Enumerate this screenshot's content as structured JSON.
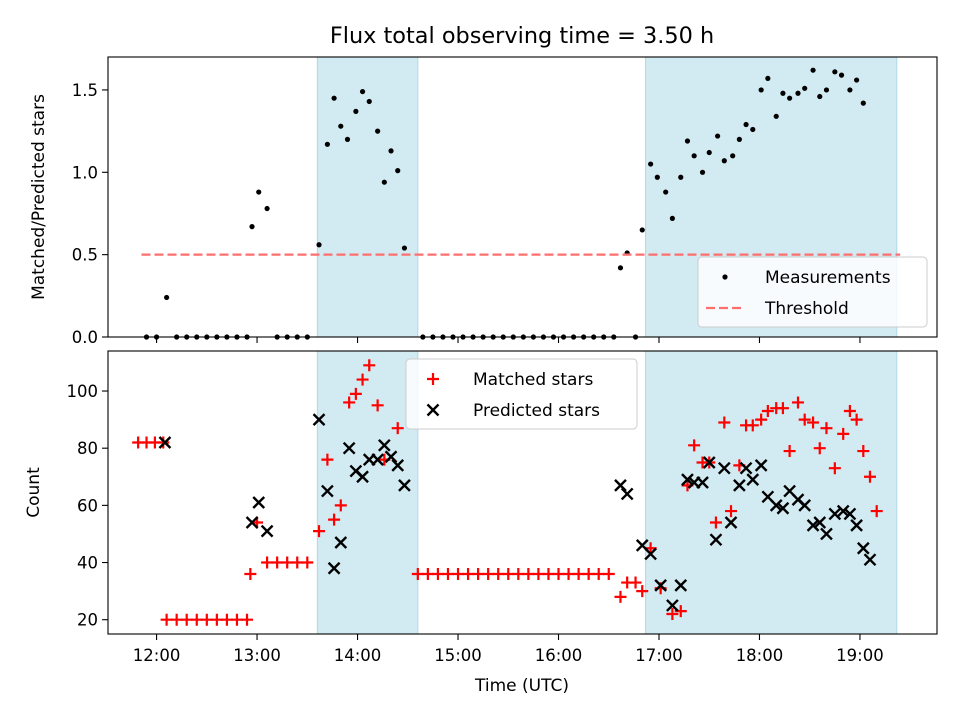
{
  "figure": {
    "title": "Flux total observing time = 3.50 h",
    "xlabel": "Time (UTC)",
    "x_ticks": [
      "12:00",
      "13:00",
      "14:00",
      "15:00",
      "16:00",
      "17:00",
      "18:00",
      "19:00"
    ],
    "shaded_intervals": [
      [
        "13:36",
        "14:36"
      ],
      [
        "16:52",
        "19:22"
      ]
    ],
    "shade_color": "#add8e6"
  },
  "chart_data": [
    {
      "type": "scatter",
      "ylabel": "Matched/Predicted stars",
      "xlim": [
        "11:31",
        "19:46"
      ],
      "ylim": [
        0,
        1.7
      ],
      "y_ticks": [
        "0.0",
        "0.5",
        "1.0",
        "1.5"
      ],
      "legend_position": "lower right",
      "series": [
        {
          "name": "Measurements",
          "marker": "dot",
          "color": "#000000",
          "points": [
            [
              "11:54",
              0
            ],
            [
              "12:00",
              0
            ],
            [
              "12:06",
              0.24
            ],
            [
              "12:12",
              0
            ],
            [
              "12:18",
              0
            ],
            [
              "12:24",
              0
            ],
            [
              "12:30",
              0
            ],
            [
              "12:36",
              0
            ],
            [
              "12:42",
              0
            ],
            [
              "12:48",
              0
            ],
            [
              "12:54",
              0
            ],
            [
              "12:57",
              0.67
            ],
            [
              "13:01",
              0.88
            ],
            [
              "13:06",
              0.78
            ],
            [
              "13:12",
              0
            ],
            [
              "13:18",
              0
            ],
            [
              "13:24",
              0
            ],
            [
              "13:30",
              0
            ],
            [
              "13:37",
              0.56
            ],
            [
              "13:42",
              1.17
            ],
            [
              "13:46",
              1.45
            ],
            [
              "13:50",
              1.28
            ],
            [
              "13:54",
              1.2
            ],
            [
              "13:59",
              1.37
            ],
            [
              "14:03",
              1.49
            ],
            [
              "14:07",
              1.43
            ],
            [
              "14:12",
              1.25
            ],
            [
              "14:16",
              0.94
            ],
            [
              "14:20",
              1.13
            ],
            [
              "14:24",
              1.01
            ],
            [
              "14:28",
              0.54
            ],
            [
              "14:39",
              0
            ],
            [
              "14:45",
              0
            ],
            [
              "14:51",
              0
            ],
            [
              "14:57",
              0
            ],
            [
              "15:03",
              0
            ],
            [
              "15:09",
              0
            ],
            [
              "15:15",
              0
            ],
            [
              "15:21",
              0
            ],
            [
              "15:27",
              0
            ],
            [
              "15:33",
              0
            ],
            [
              "15:39",
              0
            ],
            [
              "15:45",
              0
            ],
            [
              "15:51",
              0
            ],
            [
              "15:57",
              0
            ],
            [
              "16:03",
              0
            ],
            [
              "16:09",
              0
            ],
            [
              "16:15",
              0
            ],
            [
              "16:21",
              0
            ],
            [
              "16:27",
              0
            ],
            [
              "16:33",
              0
            ],
            [
              "16:37",
              0.42
            ],
            [
              "16:41",
              0.51
            ],
            [
              "16:46",
              0
            ],
            [
              "16:50",
              0.65
            ],
            [
              "16:55",
              1.05
            ],
            [
              "16:59",
              0.97
            ],
            [
              "17:04",
              0.88
            ],
            [
              "17:08",
              0.72
            ],
            [
              "17:13",
              0.97
            ],
            [
              "17:17",
              1.19
            ],
            [
              "17:21",
              1.1
            ],
            [
              "17:26",
              1.0
            ],
            [
              "17:30",
              1.12
            ],
            [
              "17:35",
              1.22
            ],
            [
              "17:39",
              1.07
            ],
            [
              "17:44",
              1.1
            ],
            [
              "17:48",
              1.2
            ],
            [
              "17:52",
              1.29
            ],
            [
              "17:56",
              1.26
            ],
            [
              "18:01",
              1.5
            ],
            [
              "18:05",
              1.57
            ],
            [
              "18:10",
              1.34
            ],
            [
              "18:14",
              1.48
            ],
            [
              "18:18",
              1.45
            ],
            [
              "18:23",
              1.48
            ],
            [
              "18:27",
              1.51
            ],
            [
              "18:32",
              1.62
            ],
            [
              "18:36",
              1.46
            ],
            [
              "18:40",
              1.5
            ],
            [
              "18:45",
              1.61
            ],
            [
              "18:49",
              1.59
            ],
            [
              "18:54",
              1.5
            ],
            [
              "18:58",
              1.56
            ],
            [
              "19:02",
              1.42
            ]
          ]
        },
        {
          "name": "Threshold",
          "style": "dashed-line",
          "color": "#ff6e6e",
          "points": [
            [
              "11:51",
              0.5
            ],
            [
              "19:24",
              0.5
            ]
          ]
        }
      ]
    },
    {
      "type": "scatter",
      "ylabel": "Count",
      "xlim": [
        "11:31",
        "19:46"
      ],
      "ylim": [
        15,
        114
      ],
      "y_ticks": [
        "20",
        "40",
        "60",
        "80",
        "100"
      ],
      "legend_position": "upper center",
      "series": [
        {
          "name": "Matched stars",
          "marker": "plus",
          "color": "#ff0000",
          "points": [
            [
              "11:49",
              82
            ],
            [
              "11:54",
              82
            ],
            [
              "11:59",
              82
            ],
            [
              "12:04",
              82
            ],
            [
              "12:06",
              20
            ],
            [
              "12:12",
              20
            ],
            [
              "12:18",
              20
            ],
            [
              "12:24",
              20
            ],
            [
              "12:30",
              20
            ],
            [
              "12:36",
              20
            ],
            [
              "12:42",
              20
            ],
            [
              "12:48",
              20
            ],
            [
              "12:54",
              20
            ],
            [
              "12:56",
              36
            ],
            [
              "13:00",
              54
            ],
            [
              "13:06",
              40
            ],
            [
              "13:12",
              40
            ],
            [
              "13:18",
              40
            ],
            [
              "13:24",
              40
            ],
            [
              "13:30",
              40
            ],
            [
              "13:37",
              51
            ],
            [
              "13:42",
              76
            ],
            [
              "13:46",
              55
            ],
            [
              "13:50",
              60
            ],
            [
              "13:55",
              96
            ],
            [
              "13:59",
              99
            ],
            [
              "14:03",
              104
            ],
            [
              "14:07",
              109
            ],
            [
              "14:12",
              95
            ],
            [
              "14:16",
              76
            ],
            [
              "14:24",
              87
            ],
            [
              "14:36",
              36
            ],
            [
              "14:42",
              36
            ],
            [
              "14:48",
              36
            ],
            [
              "14:54",
              36
            ],
            [
              "15:00",
              36
            ],
            [
              "15:06",
              36
            ],
            [
              "15:12",
              36
            ],
            [
              "15:18",
              36
            ],
            [
              "15:24",
              36
            ],
            [
              "15:30",
              36
            ],
            [
              "15:36",
              36
            ],
            [
              "15:42",
              36
            ],
            [
              "15:48",
              36
            ],
            [
              "15:54",
              36
            ],
            [
              "16:00",
              36
            ],
            [
              "16:06",
              36
            ],
            [
              "16:12",
              36
            ],
            [
              "16:18",
              36
            ],
            [
              "16:24",
              36
            ],
            [
              "16:30",
              36
            ],
            [
              "16:37",
              28
            ],
            [
              "16:41",
              33
            ],
            [
              "16:46",
              33
            ],
            [
              "16:50",
              30
            ],
            [
              "16:55",
              45
            ],
            [
              "17:01",
              31
            ],
            [
              "17:08",
              22
            ],
            [
              "17:13",
              23
            ],
            [
              "17:17",
              67
            ],
            [
              "17:21",
              81
            ],
            [
              "17:26",
              75
            ],
            [
              "17:30",
              75
            ],
            [
              "17:34",
              54
            ],
            [
              "17:39",
              89
            ],
            [
              "17:43",
              58
            ],
            [
              "17:48",
              74
            ],
            [
              "17:52",
              88
            ],
            [
              "17:56",
              88
            ],
            [
              "18:01",
              90
            ],
            [
              "18:05",
              93
            ],
            [
              "18:10",
              94
            ],
            [
              "18:14",
              94
            ],
            [
              "18:18",
              79
            ],
            [
              "18:23",
              96
            ],
            [
              "18:27",
              90
            ],
            [
              "18:32",
              89
            ],
            [
              "18:36",
              80
            ],
            [
              "18:40",
              87
            ],
            [
              "18:45",
              73
            ],
            [
              "18:50",
              85
            ],
            [
              "18:54",
              93
            ],
            [
              "18:58",
              90
            ],
            [
              "19:02",
              79
            ],
            [
              "19:06",
              70
            ],
            [
              "19:10",
              58
            ]
          ]
        },
        {
          "name": "Predicted stars",
          "marker": "x",
          "color": "#000000",
          "points": [
            [
              "12:05",
              82
            ],
            [
              "12:57",
              54
            ],
            [
              "13:01",
              61
            ],
            [
              "13:06",
              51
            ],
            [
              "13:37",
              90
            ],
            [
              "13:42",
              65
            ],
            [
              "13:46",
              38
            ],
            [
              "13:50",
              47
            ],
            [
              "13:55",
              80
            ],
            [
              "13:59",
              72
            ],
            [
              "14:03",
              70
            ],
            [
              "14:07",
              76
            ],
            [
              "14:12",
              76
            ],
            [
              "14:16",
              81
            ],
            [
              "14:20",
              77
            ],
            [
              "14:24",
              74
            ],
            [
              "14:28",
              67
            ],
            [
              "16:37",
              67
            ],
            [
              "16:41",
              64
            ],
            [
              "16:50",
              46
            ],
            [
              "16:55",
              43
            ],
            [
              "17:01",
              32
            ],
            [
              "17:08",
              25
            ],
            [
              "17:13",
              32
            ],
            [
              "17:17",
              69
            ],
            [
              "17:21",
              68
            ],
            [
              "17:26",
              68
            ],
            [
              "17:30",
              75
            ],
            [
              "17:34",
              48
            ],
            [
              "17:39",
              73
            ],
            [
              "17:43",
              54
            ],
            [
              "17:48",
              67
            ],
            [
              "17:52",
              73
            ],
            [
              "17:56",
              69
            ],
            [
              "18:01",
              74
            ],
            [
              "18:05",
              63
            ],
            [
              "18:10",
              60
            ],
            [
              "18:14",
              59
            ],
            [
              "18:18",
              65
            ],
            [
              "18:23",
              62
            ],
            [
              "18:27",
              60
            ],
            [
              "18:32",
              53
            ],
            [
              "18:36",
              54
            ],
            [
              "18:40",
              50
            ],
            [
              "18:45",
              57
            ],
            [
              "18:50",
              58
            ],
            [
              "18:54",
              57
            ],
            [
              "18:58",
              53
            ],
            [
              "19:02",
              45
            ],
            [
              "19:06",
              41
            ]
          ]
        }
      ]
    }
  ]
}
